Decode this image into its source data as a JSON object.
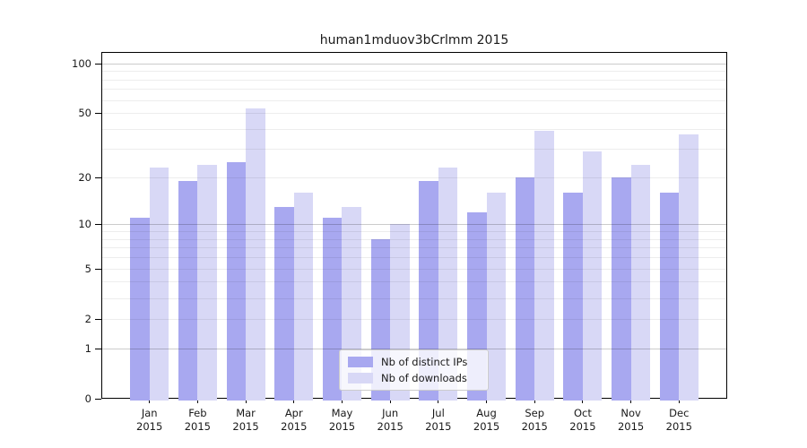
{
  "chart_data": {
    "type": "bar",
    "title": "human1mduov3bCrlmm 2015",
    "categories": [
      "Jan",
      "Feb",
      "Mar",
      "Apr",
      "May",
      "Jun",
      "Jul",
      "Aug",
      "Sep",
      "Oct",
      "Nov",
      "Dec"
    ],
    "x_sub_label": "2015",
    "series": [
      {
        "name": "Nb of distinct IPs",
        "color": "#a8a8f0",
        "values": [
          11,
          19,
          25,
          13,
          11,
          8,
          19,
          12,
          20,
          16,
          20,
          16
        ]
      },
      {
        "name": "Nb of downloads",
        "color": "#d8d8f6",
        "values": [
          23,
          24,
          53,
          16,
          13,
          10,
          23,
          16,
          39,
          29,
          24,
          37
        ]
      }
    ],
    "yscale": "log1p",
    "ylim": [
      0,
      117
    ],
    "y_ticks": [
      {
        "value": 0,
        "label": "0"
      },
      {
        "value": 1,
        "label": "1"
      },
      {
        "value": 2,
        "label": "2"
      },
      {
        "value": 5,
        "label": "5"
      },
      {
        "value": 10,
        "label": "10"
      },
      {
        "value": 20,
        "label": "20"
      },
      {
        "value": 50,
        "label": "50"
      },
      {
        "value": 100,
        "label": "100"
      }
    ],
    "grid_minor_values": [
      2,
      3,
      4,
      5,
      6,
      7,
      8,
      9,
      20,
      30,
      40,
      50,
      60,
      70,
      80,
      90
    ],
    "grid_major_values": [
      1,
      10,
      100
    ],
    "grid": true,
    "legend_position": "lower center",
    "colors": {
      "axis": "#000000",
      "text": "#191919",
      "grid_minor": "#ededed",
      "grid_major": "#cccccc",
      "legend_border": "#cccccc"
    }
  }
}
